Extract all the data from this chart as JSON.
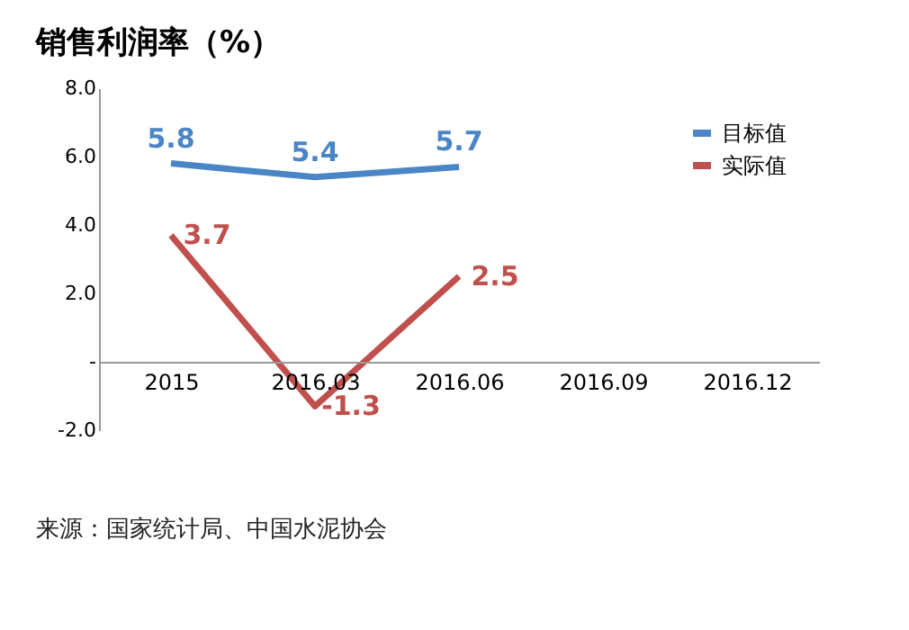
{
  "chart_data": {
    "type": "line",
    "title": "销售利润率（%）",
    "categories": [
      "2015",
      "2016.03",
      "2016.06",
      "2016.09",
      "2016.12"
    ],
    "series": [
      {
        "name": "目标值",
        "color": "#4a86c5",
        "values": [
          5.8,
          5.4,
          5.7,
          null,
          null
        ]
      },
      {
        "name": "实际值",
        "color": "#c0504d",
        "values": [
          3.7,
          -1.3,
          2.5,
          null,
          null
        ]
      }
    ],
    "ylim": [
      -2,
      8
    ],
    "yticks": [
      {
        "value": 8,
        "label": "8.0"
      },
      {
        "value": 6,
        "label": "6.0"
      },
      {
        "value": 4,
        "label": "4.0"
      },
      {
        "value": 2,
        "label": "2.0"
      },
      {
        "value": 0,
        "label": "-"
      },
      {
        "value": -2,
        "label": "-2.0"
      }
    ],
    "data_labels": true,
    "legend": "top right",
    "grid": false,
    "marker": "none",
    "line_style": "solid",
    "annotations": [
      "来源：国家统计局、中国水泥协会"
    ]
  }
}
